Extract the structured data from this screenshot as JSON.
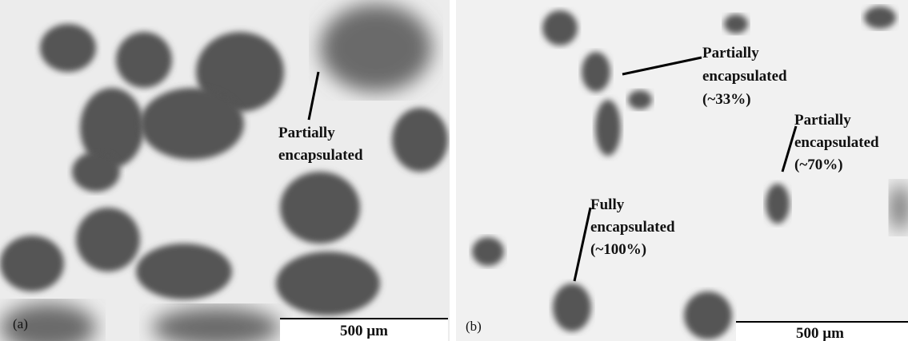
{
  "panels": [
    {
      "label": "(a)",
      "scale_bar": "500 µm",
      "annotations": [
        {
          "lines": [
            "Partially",
            "encapsulated"
          ]
        }
      ]
    },
    {
      "label": "(b)",
      "scale_bar": "500 µm",
      "annotations": [
        {
          "lines": [
            "Partially",
            "encapsulated",
            "(~33%)"
          ]
        },
        {
          "lines": [
            "Partially",
            "encapsulated",
            "(~70%)"
          ]
        },
        {
          "lines": [
            "Fully",
            "encapsulated",
            "(~100%)"
          ]
        }
      ]
    }
  ]
}
